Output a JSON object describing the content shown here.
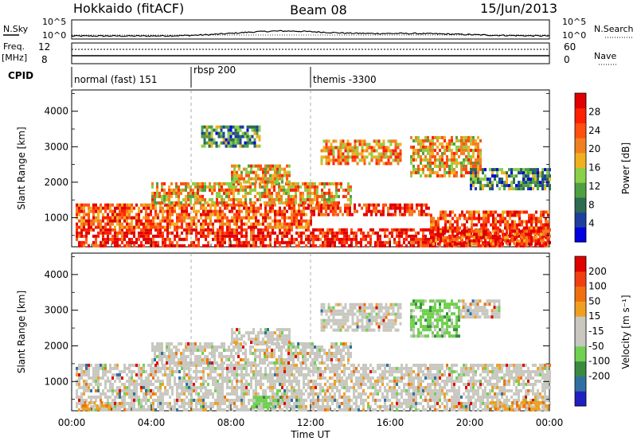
{
  "header": {
    "station": "Hokkaido (fitACF)",
    "beam": "Beam 08",
    "date": "15/Jun/2013"
  },
  "top_panels": {
    "nsky_label": "N.Sky",
    "nsearch_label": "N.Search",
    "nsky_scale": [
      "10^5",
      "10^0"
    ],
    "nsky_scale_right": [
      "10^5",
      "10^0"
    ],
    "freq_label_1": "Freq.",
    "freq_label_2": "[MHz]",
    "freq_ticks": [
      "12",
      "8"
    ],
    "nave_label": "Nave",
    "nave_ticks": [
      "60",
      "0"
    ],
    "cpid_label": "CPID",
    "cpid_segments": [
      {
        "label": "normal (fast) 151",
        "start_h": 0,
        "end_h": 6
      },
      {
        "label": "rbsp 200",
        "start_h": 6,
        "end_h": 12
      },
      {
        "label": "themis -3300",
        "start_h": 12,
        "end_h": 24
      }
    ]
  },
  "chart_data": [
    {
      "type": "heatmap",
      "name": "power-panel",
      "ylabel": "Slant Range [km]",
      "xlabel": "Time UT",
      "x_ticks": [
        "00:00",
        "04:00",
        "08:00",
        "12:00",
        "16:00",
        "20:00",
        "00:00"
      ],
      "x_tick_hours": [
        0,
        4,
        8,
        12,
        16,
        20,
        24
      ],
      "xlim_hours": [
        0,
        24
      ],
      "ylim_km": [
        180,
        4600
      ],
      "y_ticks": [
        "1000",
        "2000",
        "3000",
        "4000"
      ],
      "y_tick_values": [
        1000,
        2000,
        3000,
        4000
      ],
      "colorbar": {
        "label": "Power [dB]",
        "ticks": [
          "4",
          "8",
          "12",
          "16",
          "20",
          "24",
          "28"
        ],
        "tick_values": [
          4,
          8,
          12,
          16,
          20,
          24,
          28
        ],
        "range": [
          0,
          32
        ],
        "colors": [
          "#0000e0",
          "#1e3fa0",
          "#2e6b50",
          "#4fa040",
          "#8ad048",
          "#f0b020",
          "#f08020",
          "#ff5010",
          "#ff2000",
          "#e00000"
        ]
      },
      "echo_regions": [
        {
          "t": [
            0.2,
            24
          ],
          "r": [
            200,
            700
          ],
          "level": 0.9
        },
        {
          "t": [
            0.2,
            12
          ],
          "r": [
            700,
            1400
          ],
          "level": 0.75
        },
        {
          "t": [
            12,
            18
          ],
          "r": [
            1100,
            1400
          ],
          "level": 0.85
        },
        {
          "t": [
            18,
            24
          ],
          "r": [
            300,
            1200
          ],
          "level": 0.8
        },
        {
          "t": [
            4,
            14
          ],
          "r": [
            1400,
            2000
          ],
          "level": 0.6
        },
        {
          "t": [
            8,
            11
          ],
          "r": [
            2000,
            2500
          ],
          "level": 0.6
        },
        {
          "t": [
            12.5,
            16.5
          ],
          "r": [
            2500,
            3200
          ],
          "level": 0.65
        },
        {
          "t": [
            17,
            20.5
          ],
          "r": [
            2200,
            3300
          ],
          "level": 0.6
        },
        {
          "t": [
            6.5,
            9.5
          ],
          "r": [
            3000,
            3600
          ],
          "level": 0.3
        },
        {
          "t": [
            20,
            24
          ],
          "r": [
            1800,
            2400
          ],
          "level": 0.3
        }
      ]
    },
    {
      "type": "heatmap",
      "name": "velocity-panel",
      "ylabel": "Slant Range [km]",
      "xlabel": "Time UT",
      "x_ticks": [
        "00:00",
        "04:00",
        "08:00",
        "12:00",
        "16:00",
        "20:00",
        "00:00"
      ],
      "x_tick_hours": [
        0,
        4,
        8,
        12,
        16,
        20,
        24
      ],
      "xlim_hours": [
        0,
        24
      ],
      "ylim_km": [
        180,
        4600
      ],
      "y_ticks": [
        "1000",
        "2000",
        "3000",
        "4000"
      ],
      "y_tick_values": [
        1000,
        2000,
        3000,
        4000
      ],
      "colorbar": {
        "label": "Velocity [m s⁻¹]",
        "ticks": [
          "200",
          "100",
          "50",
          "15",
          "-15",
          "-50",
          "-100",
          "-200"
        ],
        "colors": [
          "#2020c0",
          "#3070a0",
          "#3a8a40",
          "#70d050",
          "#c8c8c0",
          "#c8c8c0",
          "#f0a020",
          "#f07010",
          "#f04010",
          "#e00000"
        ]
      },
      "echo_regions": [
        {
          "t": [
            0.2,
            24
          ],
          "r": [
            200,
            1500
          ],
          "level": 0.5
        },
        {
          "t": [
            4,
            14
          ],
          "r": [
            1500,
            2100
          ],
          "level": 0.5
        },
        {
          "t": [
            8,
            11
          ],
          "r": [
            2100,
            2500
          ],
          "level": 0.5
        },
        {
          "t": [
            12.5,
            16.5
          ],
          "r": [
            2400,
            3200
          ],
          "level": 0.5
        },
        {
          "t": [
            17,
            19.5
          ],
          "r": [
            2300,
            3300
          ],
          "level": 0.7
        },
        {
          "t": [
            19.5,
            21.5
          ],
          "r": [
            2800,
            3300
          ],
          "level": 0.5
        },
        {
          "t": [
            0.5,
            2
          ],
          "r": [
            250,
            450
          ],
          "level": 0.2
        },
        {
          "t": [
            21,
            24
          ],
          "r": [
            250,
            450
          ],
          "level": 0.2
        },
        {
          "t": [
            9,
            10.5
          ],
          "r": [
            250,
            600
          ],
          "level": 0.7
        }
      ]
    }
  ]
}
